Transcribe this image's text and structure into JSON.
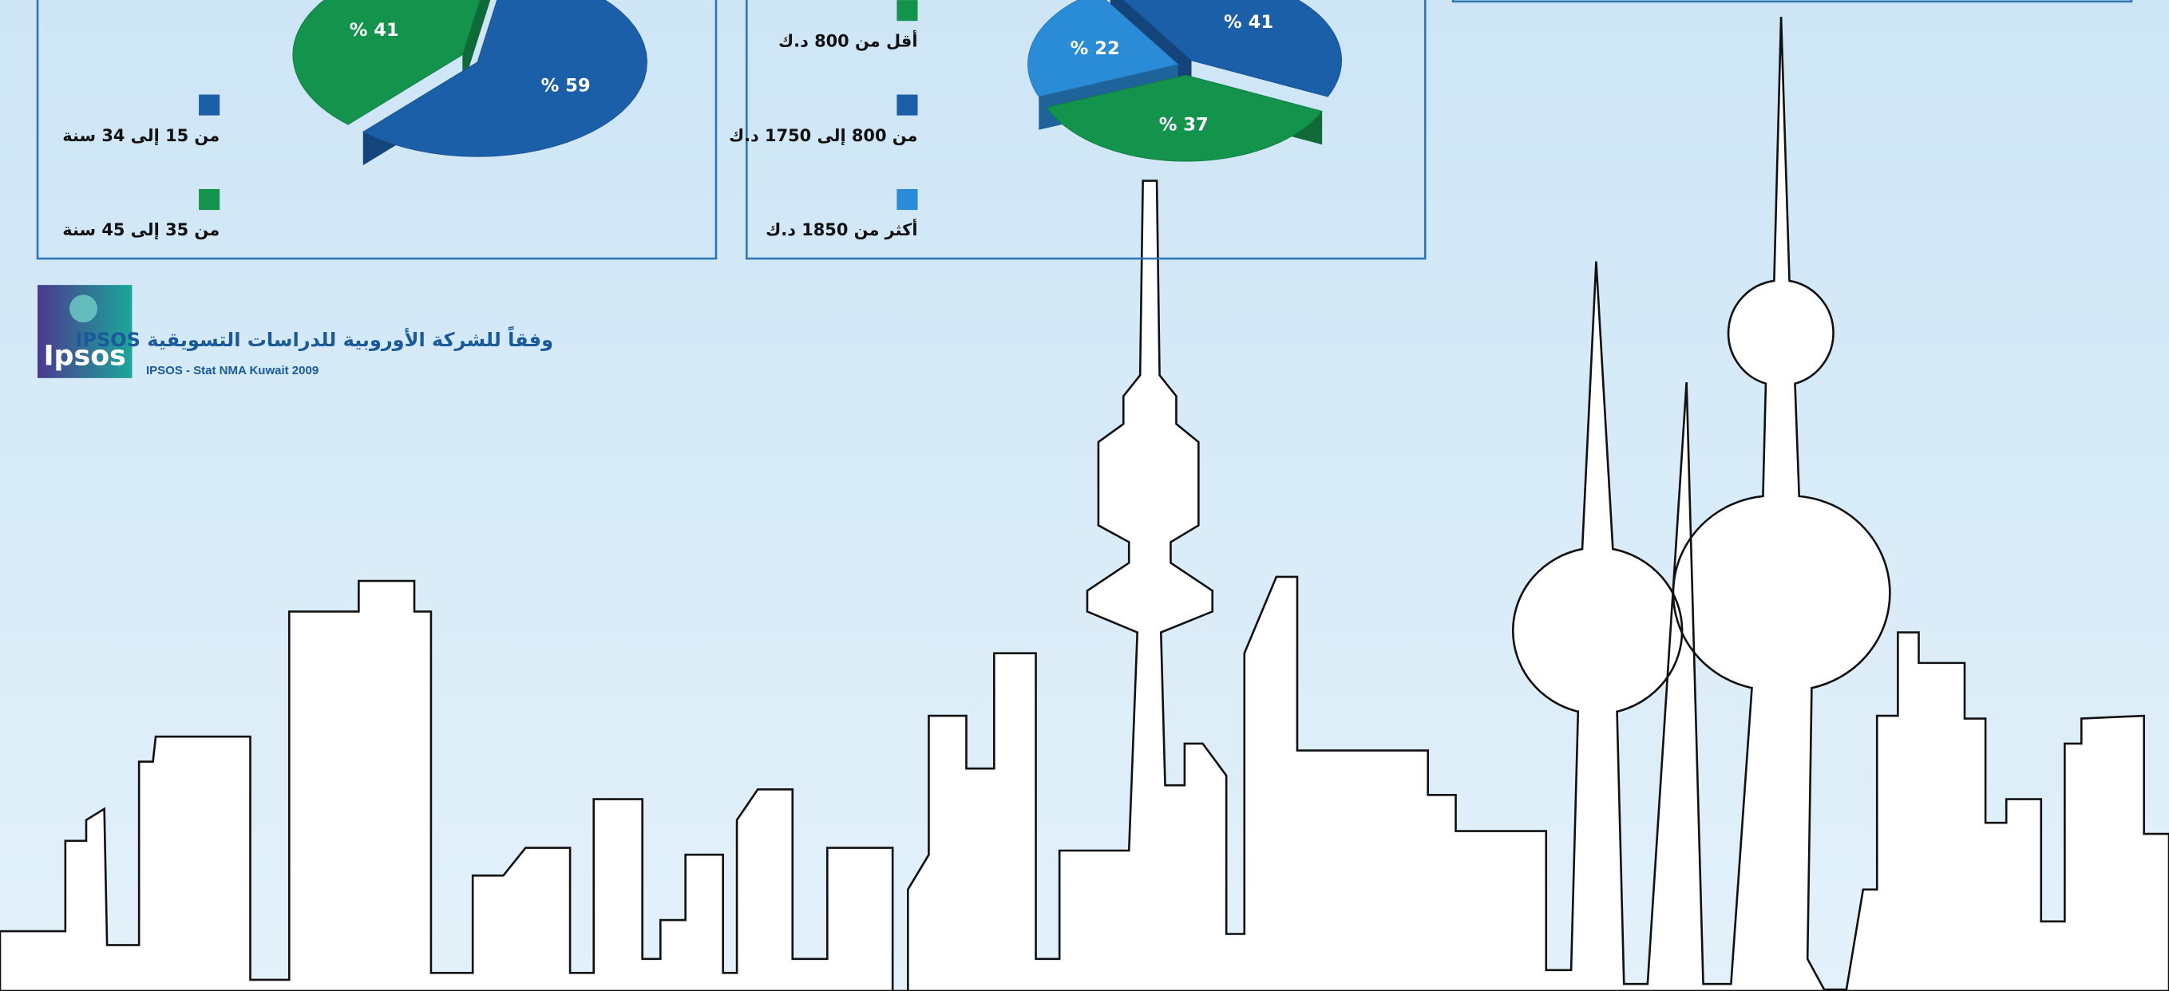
{
  "chart_data": [
    {
      "type": "pie",
      "categories": [
        "من 15 إلى 34 سنة",
        "من 35 إلى 45 سنة"
      ],
      "values": [
        59,
        41
      ],
      "value_labels": [
        "% 59",
        "% 41"
      ],
      "colors": [
        "#1b5fa9",
        "#13934b"
      ]
    },
    {
      "type": "pie",
      "categories": [
        "أقل من 800 د.ك",
        "من 800 إلى 1750 د.ك",
        "أكثر من 1850 د.ك"
      ],
      "values": [
        37,
        41,
        22
      ],
      "value_labels": [
        "% 37",
        "% 41",
        "% 22"
      ],
      "colors": [
        "#13934b",
        "#1b5fa9",
        "#2a8bd6"
      ]
    }
  ],
  "source": {
    "logo": "Ipsos",
    "title": "وفقاً للشركة الأوروبية للدراسات التسويقية IPSOS",
    "subtitle": "IPSOS - Stat NMA Kuwait 2009"
  }
}
